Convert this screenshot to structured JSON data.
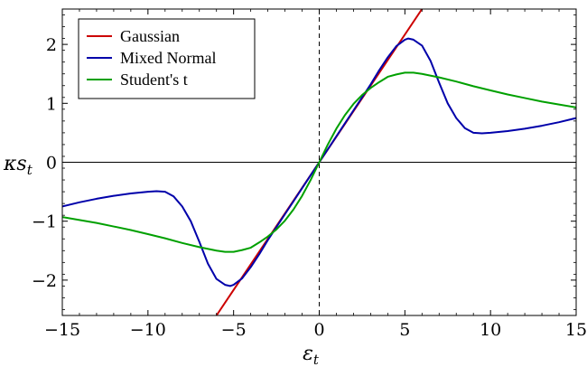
{
  "chart_data": {
    "type": "line",
    "title": "",
    "xlabel": "ε",
    "xlabel_subscript": "t",
    "ylabel": "κs",
    "ylabel_subscript": "t",
    "xlim": [
      -15,
      15
    ],
    "ylim": [
      -2.6,
      2.6
    ],
    "xticks": [
      -15,
      -10,
      -5,
      0,
      5,
      10,
      15
    ],
    "xtick_labels": [
      "−15",
      "−10",
      "−5",
      "0",
      "5",
      "10",
      "15"
    ],
    "yticks": [
      -2,
      -1,
      0,
      1,
      2
    ],
    "ytick_labels": [
      "−2",
      "−1",
      "0",
      "1",
      "2"
    ],
    "grid": false,
    "legend_position": "top-left",
    "reference_lines": {
      "horizontal_y": 0,
      "vertical_x": 0,
      "vertical_style": "dashed"
    },
    "series": [
      {
        "name": "Gaussian",
        "color": "#cc0000",
        "x": [
          -6.0,
          6.0
        ],
        "y": [
          -2.6,
          2.6
        ]
      },
      {
        "name": "Mixed Normal",
        "color": "#0000aa",
        "x": [
          -15,
          -14,
          -13,
          -12,
          -11,
          -10,
          -9.5,
          -9,
          -8.5,
          -8,
          -7.5,
          -7,
          -6.5,
          -6,
          -5.5,
          -5.2,
          -5,
          -4.5,
          -4,
          -3.5,
          -3,
          -2.5,
          -2,
          -1.5,
          -1,
          -0.5,
          0,
          0.5,
          1,
          1.5,
          2,
          2.5,
          3,
          3.5,
          4,
          4.5,
          5,
          5.2,
          5.5,
          6,
          6.5,
          7,
          7.5,
          8,
          8.5,
          9,
          9.5,
          10,
          11,
          12,
          13,
          14,
          15
        ],
        "y": [
          -0.75,
          -0.68,
          -0.62,
          -0.57,
          -0.53,
          -0.5,
          -0.49,
          -0.5,
          -0.58,
          -0.75,
          -1.0,
          -1.35,
          -1.72,
          -1.98,
          -2.08,
          -2.1,
          -2.08,
          -1.97,
          -1.78,
          -1.56,
          -1.32,
          -1.1,
          -0.88,
          -0.66,
          -0.44,
          -0.22,
          0.0,
          0.22,
          0.44,
          0.66,
          0.88,
          1.1,
          1.32,
          1.56,
          1.78,
          1.97,
          2.08,
          2.1,
          2.08,
          1.98,
          1.72,
          1.35,
          1.0,
          0.75,
          0.58,
          0.5,
          0.49,
          0.5,
          0.53,
          0.57,
          0.62,
          0.68,
          0.75
        ]
      },
      {
        "name": "Student's t",
        "color": "#00a000",
        "x": [
          -15,
          -14,
          -13,
          -12,
          -11,
          -10,
          -9,
          -8,
          -7,
          -6,
          -5.5,
          -5,
          -4.5,
          -4,
          -3.5,
          -3,
          -2.5,
          -2,
          -1.5,
          -1,
          -0.5,
          0,
          0.5,
          1,
          1.5,
          2,
          2.5,
          3,
          3.5,
          4,
          4.5,
          5,
          5.5,
          6,
          7,
          8,
          9,
          10,
          11,
          12,
          13,
          14,
          15
        ],
        "y": [
          -0.93,
          -0.98,
          -1.03,
          -1.09,
          -1.15,
          -1.22,
          -1.29,
          -1.37,
          -1.44,
          -1.5,
          -1.52,
          -1.52,
          -1.49,
          -1.45,
          -1.36,
          -1.26,
          -1.14,
          -0.99,
          -0.8,
          -0.57,
          -0.3,
          0.0,
          0.3,
          0.57,
          0.8,
          0.99,
          1.14,
          1.26,
          1.36,
          1.45,
          1.49,
          1.52,
          1.52,
          1.5,
          1.44,
          1.37,
          1.29,
          1.22,
          1.15,
          1.09,
          1.03,
          0.98,
          0.93
        ]
      }
    ]
  }
}
